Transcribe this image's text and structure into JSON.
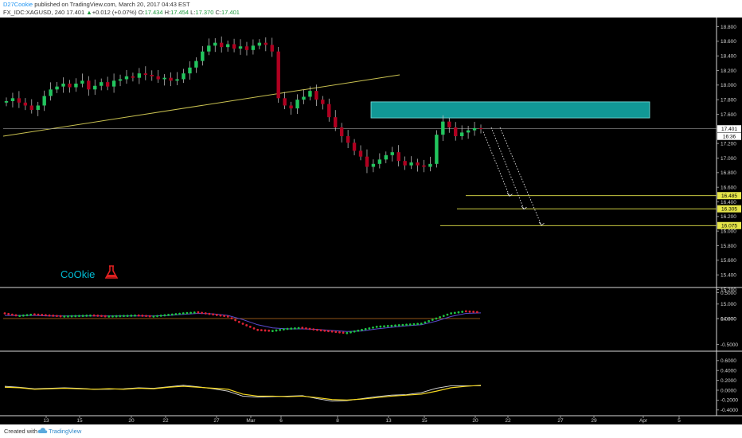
{
  "header": {
    "author": "D27Cookie",
    "published": "published on TradingView.com, March 20, 2017 04:43 EST",
    "symbol": "FX_IDC:XAGUSD, 240",
    "last": "17.401",
    "change": "+0.012 (+0.07%)",
    "ohlc": {
      "O": "17.434",
      "H": "17.454",
      "L": "17.370",
      "C": "17.401"
    }
  },
  "footer": {
    "created": "Created with",
    "brand": "TradingView"
  },
  "watermark": {
    "text": "CoOkie",
    "icon": "flask-icon"
  },
  "colors": {
    "bull": "#22c55e",
    "bear": "#b00020",
    "zone": "#14b3b0",
    "level": "#e5e54a",
    "trend": "#c8c050",
    "signal": "#5b4bd1",
    "pos": "#1cc241",
    "neg": "#dd2233",
    "stoch1": "#f5d820",
    "stoch2": "#e0e0e0"
  },
  "chart_data": [
    {
      "type": "candlestick",
      "ylim": [
        14.7,
        18.8
      ],
      "y_ticks": [
        "18.800",
        "18.600",
        "18.400",
        "18.200",
        "18.000",
        "17.800",
        "17.600",
        "17.400",
        "17.200",
        "17.000",
        "16.800",
        "16.600",
        "16.400",
        "16.200",
        "16.000",
        "15.800",
        "15.600",
        "15.400",
        "15.200",
        "15.000",
        "14.800"
      ],
      "x_ticks": [
        "13",
        "15",
        "20",
        "22",
        "27",
        "Mar",
        "6",
        "8",
        "13",
        "15",
        "20",
        "22",
        "27",
        "29",
        "Apr",
        "5"
      ],
      "last_price_label": "17.401",
      "countdown_label": "16:36",
      "close": [
        17.78,
        17.82,
        17.76,
        17.72,
        17.66,
        17.72,
        17.85,
        17.94,
        17.98,
        18.02,
        17.97,
        18.02,
        18.06,
        17.94,
        17.99,
        18.04,
        17.98,
        18.06,
        18.08,
        18.12,
        18.1,
        18.16,
        18.14,
        18.12,
        18.08,
        18.1,
        18.06,
        18.08,
        18.16,
        18.24,
        18.33,
        18.46,
        18.54,
        18.58,
        18.52,
        18.56,
        18.5,
        18.53,
        18.48,
        18.54,
        18.58,
        18.55,
        18.46,
        17.82,
        17.72,
        17.68,
        17.8,
        17.84,
        17.92,
        17.8,
        17.74,
        17.56,
        17.42,
        17.3,
        17.21,
        17.1,
        17.02,
        16.88,
        16.92,
        16.98,
        17.04,
        17.08,
        16.96,
        16.9,
        16.94,
        16.9,
        16.88,
        16.92,
        17.32,
        17.5,
        17.42,
        17.3,
        17.35,
        17.38,
        17.41,
        17.4
      ],
      "zone": {
        "y_top": 17.77,
        "y_bottom": 17.55
      },
      "levels": [
        {
          "value": 16.485,
          "label": "16.485"
        },
        {
          "value": 16.305,
          "label": "16.305"
        },
        {
          "value": 16.075,
          "label": "16.075"
        }
      ],
      "projections": 3
    },
    {
      "type": "line",
      "ylim": [
        -0.6,
        0.6
      ],
      "y_ticks": [
        "0.5000",
        "0.0000",
        "-0.5000"
      ],
      "series": [
        {
          "values": [
            0.1,
            0.05,
            0.08,
            0.06,
            0.04,
            0.05,
            0.06,
            0.04,
            0.05,
            0.06,
            0.04,
            0.07,
            0.1,
            0.12,
            0.08,
            0.04,
            -0.1,
            -0.22,
            -0.24,
            -0.2,
            -0.18,
            -0.22,
            -0.25,
            -0.28,
            -0.22,
            -0.16,
            -0.14,
            -0.12,
            -0.1,
            0.0,
            0.1,
            0.14,
            0.12
          ]
        },
        {
          "values": [
            0.06,
            0.06,
            0.06,
            0.05,
            0.05,
            0.05,
            0.05,
            0.05,
            0.05,
            0.05,
            0.05,
            0.06,
            0.08,
            0.1,
            0.09,
            0.06,
            -0.02,
            -0.12,
            -0.18,
            -0.2,
            -0.2,
            -0.21,
            -0.23,
            -0.25,
            -0.24,
            -0.2,
            -0.17,
            -0.14,
            -0.12,
            -0.05,
            0.04,
            0.1,
            0.11
          ]
        }
      ]
    },
    {
      "type": "line",
      "ylim": [
        -0.45,
        0.65
      ],
      "y_ticks": [
        "0.6000",
        "0.4000",
        "0.2000",
        "0.0000",
        "-0.2000",
        "-0.4000"
      ],
      "series": [
        {
          "values": [
            0.06,
            0.05,
            0.02,
            0.03,
            0.04,
            0.03,
            0.02,
            0.03,
            0.02,
            0.04,
            0.03,
            0.06,
            0.08,
            0.06,
            0.04,
            0.02,
            -0.08,
            -0.12,
            -0.12,
            -0.13,
            -0.12,
            -0.15,
            -0.19,
            -0.2,
            -0.18,
            -0.15,
            -0.12,
            -0.1,
            -0.08,
            -0.02,
            0.05,
            0.08,
            0.1
          ]
        },
        {
          "values": [
            0.08,
            0.06,
            0.03,
            0.04,
            0.05,
            0.04,
            0.02,
            0.02,
            0.03,
            0.05,
            0.04,
            0.07,
            0.1,
            0.07,
            0.03,
            -0.02,
            -0.12,
            -0.14,
            -0.13,
            -0.12,
            -0.11,
            -0.17,
            -0.22,
            -0.21,
            -0.17,
            -0.13,
            -0.1,
            -0.09,
            -0.05,
            0.04,
            0.09,
            0.09,
            0.09
          ]
        }
      ]
    }
  ]
}
